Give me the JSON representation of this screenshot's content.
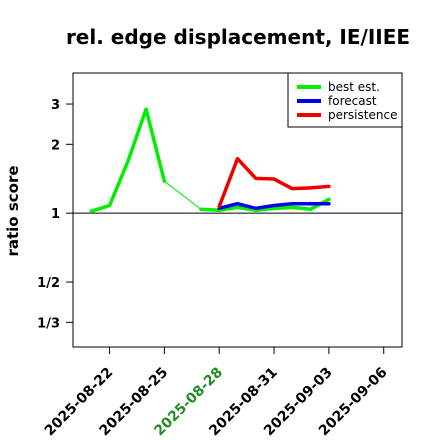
{
  "chart_data": {
    "type": "line",
    "title": "rel. edge displacement, IE/IIEE",
    "xlabel": "",
    "ylabel": "ratio score",
    "y_scale": "log",
    "y_ticks": [
      {
        "value": 3,
        "label": "3"
      },
      {
        "value": 2,
        "label": "2"
      },
      {
        "value": 1,
        "label": "1"
      },
      {
        "value": 0.5,
        "label": "1/2"
      },
      {
        "value": 0.3333,
        "label": "1/3"
      }
    ],
    "x_ticks": [
      {
        "date": "2025-08-22",
        "label": "2025-08-22",
        "color": "#000000"
      },
      {
        "date": "2025-08-25",
        "label": "2025-08-25",
        "color": "#000000"
      },
      {
        "date": "2025-08-28",
        "label": "2025-08-28",
        "color": "#228b22"
      },
      {
        "date": "2025-08-31",
        "label": "2025-08-31",
        "color": "#000000"
      },
      {
        "date": "2025-09-03",
        "label": "2025-09-03",
        "color": "#000000"
      },
      {
        "date": "2025-09-06",
        "label": "2025-09-06",
        "color": "#000000"
      }
    ],
    "xlim": [
      "2025-08-20",
      "2025-09-07"
    ],
    "ylim": [
      0.26,
      4.1
    ],
    "reference_line": 1,
    "legend_position": "top-right",
    "series": [
      {
        "name": "best est.",
        "color": "#00ee00",
        "segments": [
          [
            {
              "x": "2025-08-21",
              "y": 1.02
            },
            {
              "x": "2025-08-22",
              "y": 1.08
            },
            {
              "x": "2025-08-23",
              "y": 1.68
            },
            {
              "x": "2025-08-24",
              "y": 2.85
            },
            {
              "x": "2025-08-25",
              "y": 1.38
            }
          ],
          [
            {
              "x": "2025-08-27",
              "y": 1.04
            },
            {
              "x": "2025-08-28",
              "y": 1.03
            },
            {
              "x": "2025-08-29",
              "y": 1.06
            },
            {
              "x": "2025-08-30",
              "y": 1.03
            },
            {
              "x": "2025-08-31",
              "y": 1.05
            },
            {
              "x": "2025-09-01",
              "y": 1.06
            },
            {
              "x": "2025-09-02",
              "y": 1.04
            },
            {
              "x": "2025-09-03",
              "y": 1.15
            }
          ]
        ],
        "connector": [
          {
            "x": "2025-08-25",
            "y": 1.38
          },
          {
            "x": "2025-08-27",
            "y": 1.04
          }
        ]
      },
      {
        "name": "forecast",
        "color": "#0000ee",
        "segments": [
          [
            {
              "x": "2025-08-28",
              "y": 1.05
            },
            {
              "x": "2025-08-29",
              "y": 1.1
            },
            {
              "x": "2025-08-30",
              "y": 1.05
            },
            {
              "x": "2025-08-31",
              "y": 1.08
            },
            {
              "x": "2025-09-01",
              "y": 1.1
            },
            {
              "x": "2025-09-02",
              "y": 1.1
            },
            {
              "x": "2025-09-03",
              "y": 1.1
            }
          ]
        ]
      },
      {
        "name": "persistence",
        "color": "#ee0000",
        "segments": [
          [
            {
              "x": "2025-08-28",
              "y": 1.07
            },
            {
              "x": "2025-08-29",
              "y": 1.73
            },
            {
              "x": "2025-08-30",
              "y": 1.42
            },
            {
              "x": "2025-08-31",
              "y": 1.41
            },
            {
              "x": "2025-09-01",
              "y": 1.28
            },
            {
              "x": "2025-09-02",
              "y": 1.29
            },
            {
              "x": "2025-09-03",
              "y": 1.31
            }
          ]
        ]
      }
    ]
  }
}
